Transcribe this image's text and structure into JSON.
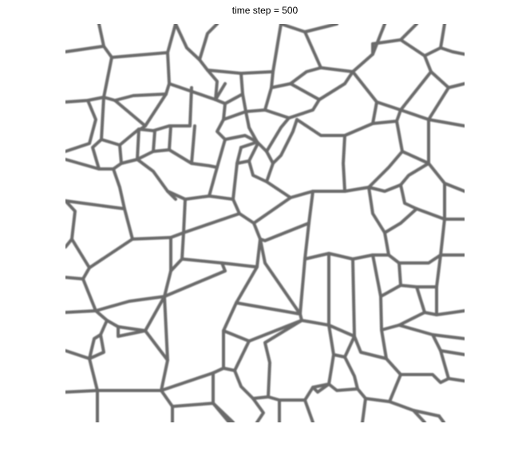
{
  "figure": {
    "title": "time step = 500",
    "boundary_color": "#6b6b6b",
    "background_color": "#ffffff"
  }
}
